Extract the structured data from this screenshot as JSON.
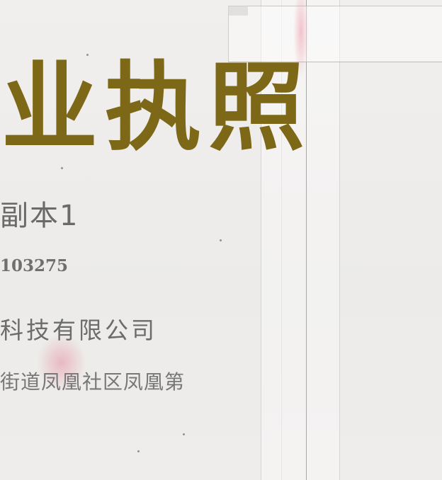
{
  "license": {
    "title": "业执照",
    "copy_label": "副本1",
    "registration_number": "103275",
    "company_name": "科技有限公司",
    "address": "街道凤凰社区凤凰第"
  },
  "colors": {
    "title_gold": "#7d6817",
    "text_gray": "#6c6c6c",
    "stamp_pink": "#de5a78"
  }
}
